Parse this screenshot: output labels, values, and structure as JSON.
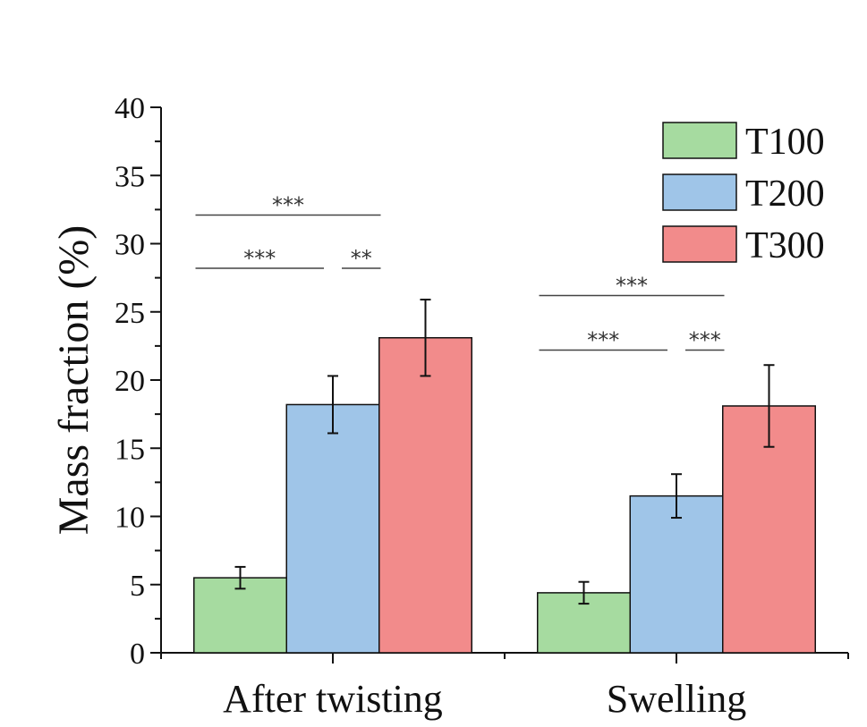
{
  "chart_data": {
    "type": "bar",
    "title": "",
    "xlabel": "",
    "ylabel": "Mass fraction (%)",
    "ylim": [
      0,
      40
    ],
    "yticks": [
      0,
      5,
      10,
      15,
      20,
      25,
      30,
      35,
      40
    ],
    "categories": [
      "After twisting",
      "Swelling"
    ],
    "series": [
      {
        "name": "T100",
        "color": "#a6dba0",
        "values": [
          5.5,
          4.4
        ],
        "errors": [
          0.8,
          0.8
        ]
      },
      {
        "name": "T200",
        "color": "#9fc5e8",
        "values": [
          18.2,
          11.5
        ],
        "errors": [
          2.1,
          1.6
        ]
      },
      {
        "name": "T300",
        "color": "#f28b8b",
        "values": [
          23.1,
          18.1
        ],
        "errors": [
          2.8,
          3.0
        ]
      }
    ],
    "legend_position": "top-right",
    "significance": [
      {
        "category": 0,
        "from": 0,
        "to": 2,
        "label": "***",
        "y": 32.1
      },
      {
        "category": 0,
        "from": 0,
        "to": 1,
        "label": "***",
        "y": 28.2
      },
      {
        "category": 0,
        "from": 1,
        "to": 2,
        "label": "**",
        "y": 28.2
      },
      {
        "category": 1,
        "from": 0,
        "to": 2,
        "label": "***",
        "y": 26.2
      },
      {
        "category": 1,
        "from": 0,
        "to": 1,
        "label": "***",
        "y": 22.2
      },
      {
        "category": 1,
        "from": 1,
        "to": 2,
        "label": "***",
        "y": 22.2
      }
    ]
  }
}
